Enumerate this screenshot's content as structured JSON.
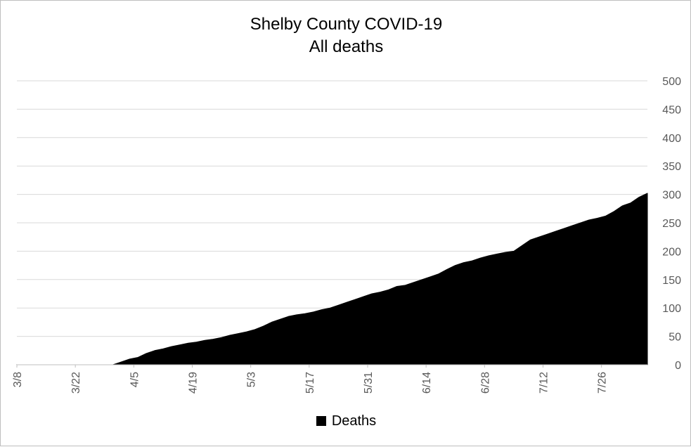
{
  "chart_data": {
    "type": "area",
    "title": "Shelby County COVID-19",
    "subtitle": "All deaths",
    "xlabel": "",
    "ylabel": "",
    "ylim": [
      0,
      500
    ],
    "y_ticks": [
      0,
      50,
      100,
      150,
      200,
      250,
      300,
      350,
      400,
      450,
      500
    ],
    "y_axis_position": "right",
    "x_tick_labels": [
      "3/8",
      "3/22",
      "4/5",
      "4/19",
      "5/3",
      "5/17",
      "5/31",
      "6/14",
      "6/28",
      "7/12",
      "7/26"
    ],
    "grid": true,
    "legend": "bottom",
    "series": [
      {
        "name": "Deaths",
        "color": "#000000",
        "x": [
          "3/8",
          "3/31",
          "4/2",
          "4/4",
          "4/6",
          "4/8",
          "4/10",
          "4/12",
          "4/14",
          "4/16",
          "4/18",
          "4/20",
          "4/22",
          "4/24",
          "4/26",
          "4/28",
          "4/30",
          "5/2",
          "5/4",
          "5/6",
          "5/8",
          "5/10",
          "5/12",
          "5/14",
          "5/16",
          "5/18",
          "5/20",
          "5/22",
          "5/24",
          "5/26",
          "5/28",
          "5/30",
          "6/1",
          "6/3",
          "6/5",
          "6/7",
          "6/9",
          "6/11",
          "6/13",
          "6/15",
          "6/17",
          "6/19",
          "6/21",
          "6/23",
          "6/25",
          "6/27",
          "6/29",
          "7/1",
          "7/3",
          "7/5",
          "7/7",
          "7/9",
          "7/11",
          "7/13",
          "7/15",
          "7/17",
          "7/19",
          "7/21",
          "7/23",
          "7/25",
          "7/27",
          "7/29",
          "7/31",
          "8/2",
          "8/4",
          "8/6"
        ],
        "values": [
          0,
          0,
          5,
          10,
          13,
          20,
          25,
          28,
          32,
          35,
          38,
          40,
          43,
          45,
          48,
          52,
          55,
          58,
          62,
          68,
          75,
          80,
          85,
          88,
          90,
          93,
          97,
          100,
          105,
          110,
          115,
          120,
          125,
          128,
          132,
          138,
          140,
          145,
          150,
          155,
          160,
          168,
          175,
          180,
          183,
          188,
          192,
          195,
          198,
          200,
          210,
          220,
          225,
          230,
          235,
          240,
          245,
          250,
          255,
          258,
          262,
          270,
          280,
          285,
          295,
          302
        ]
      }
    ]
  },
  "legend_label": "Deaths"
}
